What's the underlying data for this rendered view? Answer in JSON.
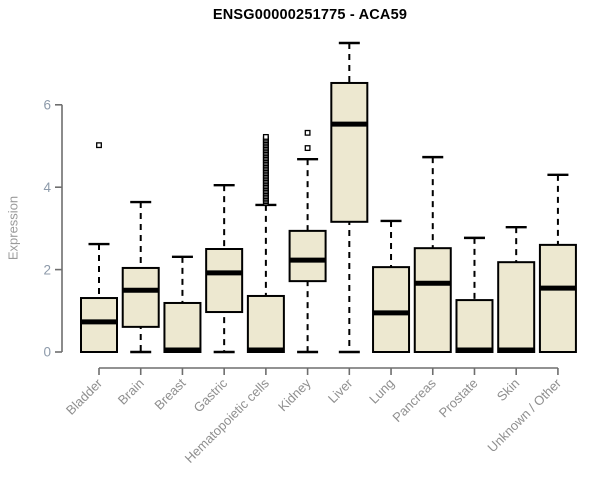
{
  "chart_data": {
    "type": "boxplot",
    "title": "ENSG00000251775 - ACA59",
    "xlabel": "",
    "ylabel": "Expression",
    "ylim": [
      0,
      7.6
    ],
    "yticks": [
      0,
      2,
      4,
      6
    ],
    "grid": false,
    "legend": null,
    "colors": {
      "box_fill": "#EDE8D0",
      "box_stroke": "#000000",
      "median": "#000000",
      "whisker": "#000000",
      "axis_line": "#6e6e6e",
      "y_tick_label": "#8d9aaa",
      "x_tick_label": "#8f8f8f",
      "y_axis_title": "#9a9a9a",
      "title": "#000000",
      "background": "#ffffff"
    },
    "categories": [
      "Bladder",
      "Brain",
      "Breast",
      "Gastric",
      "Hematopoietic cells",
      "Kidney",
      "Liver",
      "Lung",
      "Pancreas",
      "Prostate",
      "Skin",
      "Unknown / Other"
    ],
    "series": [
      {
        "category": "Bladder",
        "whisker_low": 0,
        "q1": 0,
        "median": 0.73,
        "q3": 1.31,
        "whisker_high": 2.62,
        "outliers": [
          5.02
        ]
      },
      {
        "category": "Brain",
        "whisker_low": 0,
        "q1": 0.61,
        "median": 1.5,
        "q3": 2.04,
        "whisker_high": 3.64,
        "outliers": []
      },
      {
        "category": "Breast",
        "whisker_low": 0,
        "q1": 0,
        "median": 0.05,
        "q3": 1.19,
        "whisker_high": 2.31,
        "outliers": []
      },
      {
        "category": "Gastric",
        "whisker_low": 0,
        "q1": 0.97,
        "median": 1.92,
        "q3": 2.5,
        "whisker_high": 4.05,
        "outliers": []
      },
      {
        "category": "Hematopoietic cells",
        "whisker_low": 0,
        "q1": 0,
        "median": 0.05,
        "q3": 1.36,
        "whisker_high": 3.57,
        "outliers": [
          3.62,
          3.66,
          3.7,
          3.74,
          3.78,
          3.82,
          3.86,
          3.9,
          3.94,
          3.98,
          4.02,
          4.06,
          4.1,
          4.14,
          4.18,
          4.22,
          4.26,
          4.3,
          4.34,
          4.38,
          4.42,
          4.46,
          4.5,
          4.54,
          4.58,
          4.62,
          4.66,
          4.7,
          4.74,
          4.78,
          4.82,
          4.86,
          4.9,
          4.94,
          4.98,
          5.02,
          5.06,
          5.1,
          5.14,
          5.18,
          5.22
        ]
      },
      {
        "category": "Kidney",
        "whisker_low": 0,
        "q1": 1.72,
        "median": 2.23,
        "q3": 2.94,
        "whisker_high": 4.68,
        "outliers": [
          4.95,
          5.32
        ]
      },
      {
        "category": "Liver",
        "whisker_low": 0,
        "q1": 3.16,
        "median": 5.53,
        "q3": 6.53,
        "whisker_high": 7.5,
        "outliers": []
      },
      {
        "category": "Lung",
        "whisker_low": 0,
        "q1": 0,
        "median": 0.95,
        "q3": 2.06,
        "whisker_high": 3.18,
        "outliers": []
      },
      {
        "category": "Pancreas",
        "whisker_low": 0,
        "q1": 0,
        "median": 1.67,
        "q3": 2.52,
        "whisker_high": 4.73,
        "outliers": []
      },
      {
        "category": "Prostate",
        "whisker_low": 0,
        "q1": 0,
        "median": 0.05,
        "q3": 1.26,
        "whisker_high": 2.77,
        "outliers": []
      },
      {
        "category": "Skin",
        "whisker_low": 0,
        "q1": 0,
        "median": 0.05,
        "q3": 2.18,
        "whisker_high": 3.03,
        "outliers": []
      },
      {
        "category": "Unknown / Other",
        "whisker_low": 0,
        "q1": 0,
        "median": 1.55,
        "q3": 2.6,
        "whisker_high": 4.3,
        "outliers": []
      }
    ]
  }
}
